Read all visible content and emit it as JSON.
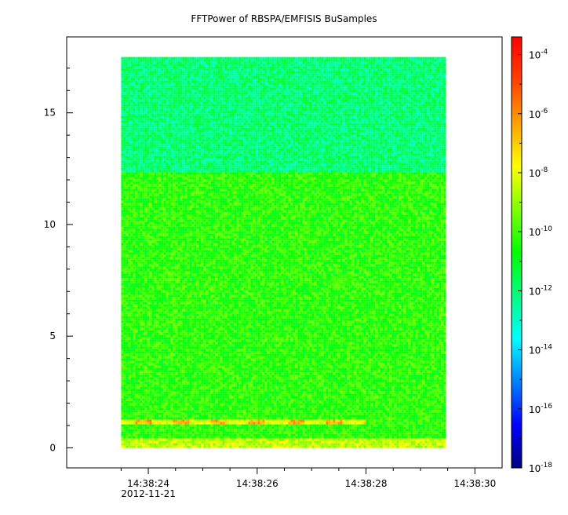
{
  "chart_data": {
    "type": "heatmap",
    "title": "FFTPower of RBSPA/EMFISIS  BuSamples",
    "xlabel": "",
    "ylabel": "",
    "x_ticks": [
      {
        "label": "14:38:24",
        "sec": 24
      },
      {
        "label": "14:38:26",
        "sec": 26
      },
      {
        "label": "14:38:28",
        "sec": 28
      },
      {
        "label": "14:38:30",
        "sec": 30
      }
    ],
    "x_minor_ticks_sec": [
      23.5,
      24.5,
      25,
      25.5,
      26.5,
      27,
      27.5,
      28.5,
      29,
      29.5
    ],
    "x_date_label": "2012-11-21",
    "xlim_sec": [
      22.5,
      30.5
    ],
    "data_x_range_sec": [
      23.5,
      29.45
    ],
    "yticks": [
      0,
      5,
      10,
      15
    ],
    "ylim": [
      -0.9,
      18.4
    ],
    "data_y_range": [
      0,
      17.5
    ],
    "colorbar": {
      "scale": "log",
      "range_exp": [
        -18,
        -3.4
      ],
      "ticks": [
        {
          "base": "10",
          "exp": "-4"
        },
        {
          "base": "10",
          "exp": "-6"
        },
        {
          "base": "10",
          "exp": "-8"
        },
        {
          "base": "10",
          "exp": "-10"
        },
        {
          "base": "10",
          "exp": "-12"
        },
        {
          "base": "10",
          "exp": "-14"
        },
        {
          "base": "10",
          "exp": "-16"
        },
        {
          "base": "10",
          "exp": "-18"
        }
      ],
      "colors": [
        "#000080",
        "#0000ff",
        "#0080ff",
        "#00ffff",
        "#00ff80",
        "#00ff00",
        "#80ff00",
        "#ffff00",
        "#ffa000",
        "#ff4000",
        "#ff0000"
      ]
    },
    "regions": [
      {
        "y_from": 12.3,
        "y_to": 17.5,
        "log_power": -12,
        "description": "upper band"
      },
      {
        "y_from": 0.4,
        "y_to": 12.3,
        "log_power": -10.3,
        "description": "main band"
      },
      {
        "y_from": 0.0,
        "y_to": 0.4,
        "log_power": -8.5,
        "description": "lowest frequency band"
      },
      {
        "y_from": 1.0,
        "y_to": 1.3,
        "x_from_sec": 23.5,
        "x_to_sec": 28.0,
        "log_power": -6.5,
        "description": "emission line"
      }
    ]
  }
}
